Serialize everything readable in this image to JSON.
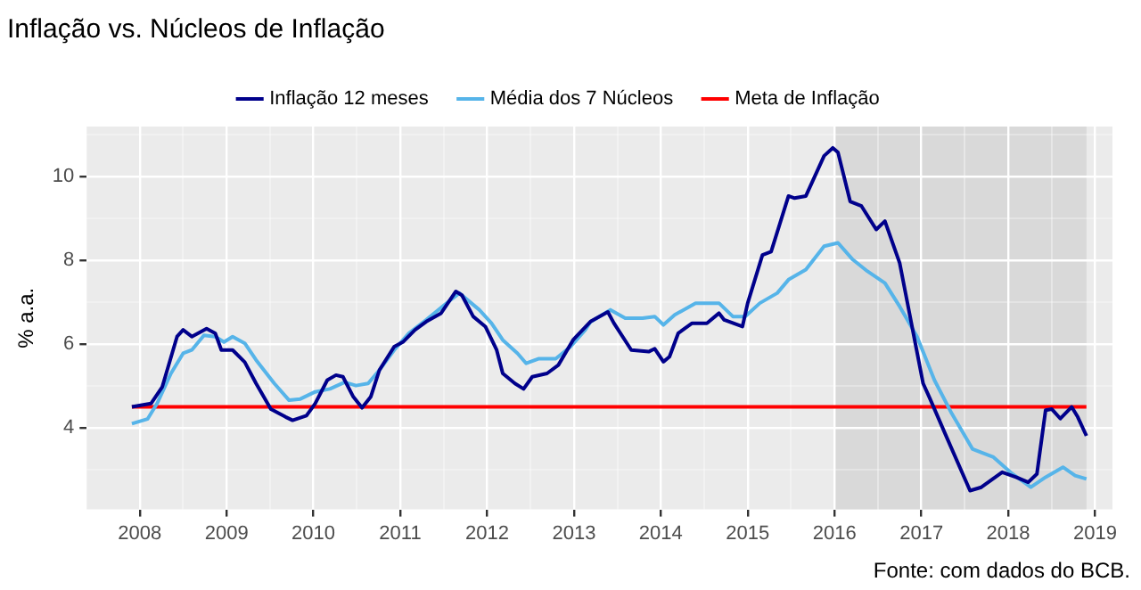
{
  "chart_data": {
    "type": "line",
    "title": "Inflação vs. Núcleos de Inflação",
    "ylabel": "% a.a.",
    "legend": "top",
    "grid": true,
    "marker": "none",
    "line_style": "solid",
    "xlim": [
      2007.39,
      2019.2
    ],
    "ylim": [
      2.05,
      11.2
    ],
    "xticks": [
      2008,
      {
        "value": 2008.5,
        "label": null
      },
      2009,
      {
        "value": 2009.5,
        "label": null
      },
      2010,
      {
        "value": 2010.5,
        "label": null
      },
      2011,
      {
        "value": 2011.5,
        "label": null
      },
      2012,
      {
        "value": 2012.5,
        "label": null
      },
      2013,
      {
        "value": 2013.5,
        "label": null
      },
      2014,
      {
        "value": 2014.5,
        "label": null
      },
      2015,
      {
        "value": 2015.5,
        "label": null
      },
      2016,
      {
        "value": 2016.5,
        "label": null
      },
      2017,
      {
        "value": 2017.5,
        "label": null
      },
      2018,
      {
        "value": 2018.5,
        "label": null
      },
      2019
    ],
    "yticks": [
      {
        "value": 3,
        "label": null
      },
      4,
      {
        "value": 5,
        "label": null
      },
      6,
      {
        "value": 7,
        "label": null
      },
      8,
      {
        "value": 9,
        "label": null
      },
      10,
      {
        "value": 11,
        "label": null
      }
    ],
    "bands": [
      {
        "axis": "x",
        "from": 2016.0,
        "to": 2018.9,
        "color": "#d3d3d3"
      }
    ],
    "annotations": [
      "Fonte: com dados do BCB."
    ],
    "series": [
      {
        "name": "Inflação 12 meses",
        "color": "#00008b",
        "x": [
          2007.91,
          2008.13,
          2008.26,
          2008.43,
          2008.5,
          2008.6,
          2008.77,
          2008.87,
          2008.94,
          2009.07,
          2009.21,
          2009.34,
          2009.51,
          2009.68,
          2009.76,
          2009.92,
          2010.02,
          2010.16,
          2010.26,
          2010.34,
          2010.46,
          2010.56,
          2010.66,
          2010.76,
          2010.93,
          2011.03,
          2011.17,
          2011.3,
          2011.47,
          2011.64,
          2011.71,
          2011.84,
          2011.98,
          2012.11,
          2012.18,
          2012.32,
          2012.42,
          2012.52,
          2012.69,
          2012.82,
          2012.99,
          2013.19,
          2013.39,
          2013.46,
          2013.66,
          2013.86,
          2013.93,
          2014.03,
          2014.1,
          2014.2,
          2014.36,
          2014.53,
          2014.67,
          2014.73,
          2014.94,
          2015.0,
          2015.17,
          2015.27,
          2015.47,
          2015.54,
          2015.67,
          2015.88,
          2015.98,
          2016.04,
          2016.18,
          2016.31,
          2016.48,
          2016.58,
          2016.75,
          2017.02,
          2017.09,
          2017.29,
          2017.56,
          2017.69,
          2017.93,
          2018.09,
          2018.23,
          2018.33,
          2018.43,
          2018.5,
          2018.6,
          2018.73,
          2018.8,
          2018.9
        ],
        "values": [
          4.5,
          4.58,
          4.98,
          6.18,
          6.34,
          6.18,
          6.37,
          6.26,
          5.86,
          5.86,
          5.57,
          5.06,
          4.45,
          4.26,
          4.18,
          4.29,
          4.58,
          5.14,
          5.26,
          5.22,
          4.74,
          4.48,
          4.74,
          5.38,
          5.94,
          6.05,
          6.34,
          6.54,
          6.74,
          7.26,
          7.17,
          6.66,
          6.42,
          5.86,
          5.3,
          5.06,
          4.93,
          5.22,
          5.3,
          5.5,
          6.1,
          6.54,
          6.77,
          6.5,
          5.86,
          5.82,
          5.89,
          5.58,
          5.7,
          6.26,
          6.5,
          6.5,
          6.74,
          6.58,
          6.42,
          6.98,
          8.13,
          8.21,
          9.54,
          9.49,
          9.54,
          10.5,
          10.69,
          10.58,
          9.41,
          9.3,
          8.74,
          8.94,
          7.94,
          5.06,
          4.74,
          3.78,
          2.5,
          2.58,
          2.94,
          2.82,
          2.7,
          2.9,
          4.42,
          4.45,
          4.22,
          4.5,
          4.26,
          3.81
        ]
      },
      {
        "name": "Média dos 7 Núcleos",
        "color": "#56b4e9",
        "x": [
          2007.91,
          2008.09,
          2008.2,
          2008.36,
          2008.5,
          2008.6,
          2008.74,
          2008.87,
          2008.97,
          2009.07,
          2009.21,
          2009.34,
          2009.55,
          2009.72,
          2009.85,
          2010.02,
          2010.19,
          2010.36,
          2010.49,
          2010.63,
          2010.76,
          2010.93,
          2011.1,
          2011.3,
          2011.51,
          2011.68,
          2011.91,
          2012.05,
          2012.18,
          2012.35,
          2012.45,
          2012.59,
          2012.79,
          2012.96,
          2013.13,
          2013.19,
          2013.42,
          2013.59,
          2013.79,
          2013.93,
          2014.03,
          2014.16,
          2014.4,
          2014.67,
          2014.83,
          2014.97,
          2015.14,
          2015.34,
          2015.47,
          2015.67,
          2015.88,
          2016.04,
          2016.21,
          2016.38,
          2016.58,
          2016.75,
          2016.95,
          2017.15,
          2017.35,
          2017.59,
          2017.83,
          2018.03,
          2018.26,
          2018.43,
          2018.63,
          2018.77,
          2018.9
        ],
        "values": [
          4.1,
          4.21,
          4.58,
          5.3,
          5.78,
          5.86,
          6.21,
          6.18,
          6.05,
          6.18,
          6.02,
          5.62,
          5.06,
          4.66,
          4.69,
          4.86,
          4.93,
          5.09,
          5.01,
          5.06,
          5.38,
          5.86,
          6.26,
          6.58,
          6.94,
          7.22,
          6.82,
          6.5,
          6.1,
          5.78,
          5.54,
          5.65,
          5.65,
          5.94,
          6.34,
          6.53,
          6.82,
          6.62,
          6.62,
          6.66,
          6.46,
          6.7,
          6.98,
          6.98,
          6.66,
          6.66,
          6.98,
          7.22,
          7.54,
          7.78,
          8.34,
          8.42,
          8.02,
          7.74,
          7.46,
          6.9,
          6.18,
          5.14,
          4.34,
          3.49,
          3.3,
          2.93,
          2.58,
          2.82,
          3.06,
          2.86,
          2.78
        ]
      },
      {
        "name": "Meta de Inflação",
        "color": "#ff0000",
        "x": [
          2007.91,
          2018.9
        ],
        "values": [
          4.5,
          4.5
        ]
      }
    ]
  }
}
